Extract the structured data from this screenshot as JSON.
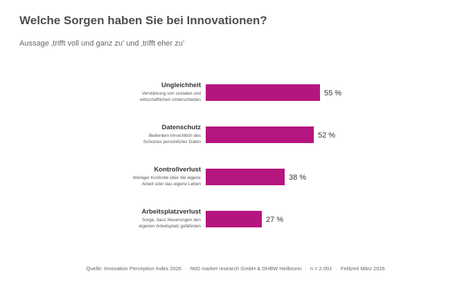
{
  "chart_data": {
    "type": "bar",
    "orientation": "horizontal",
    "title": "Welche Sorgen haben Sie bei Innovationen?",
    "subtitle": "Aussage ‚trifft voll und ganz zu’ und ‚trifft eher zu’",
    "categories": [
      "Ungleichheit",
      "Datenschutz",
      "Kontrollverlust",
      "Arbeitsplatzverlust"
    ],
    "descriptions": [
      [
        "Verstärkung von sozialen und",
        "wirtschaftlichen Unterschieden"
      ],
      [
        "Bedenken hinsichtlich des",
        "Schutzes persönlicher Daten"
      ],
      [
        "Weniger Kontrolle über die eigene",
        "Arbeit oder das eigene Leben"
      ],
      [
        "Sorge, dass Neuerungen den",
        "eigenen Arbeitsplatz gefährden"
      ]
    ],
    "values": [
      55,
      52,
      38,
      27
    ],
    "value_labels": [
      "55 %",
      "52 %",
      "38 %",
      "27 %"
    ],
    "bar_color": "#b5157e",
    "xlim": [
      0,
      100
    ],
    "grid": false,
    "legend": "none"
  },
  "footer": {
    "source": "Quelle: Innovation Perception Index 2026",
    "institution": "IWD market research GmbH & DHBW Heilbronn",
    "sample": "n = 2.001",
    "period": "Feldzeit März 2026",
    "separator": "·"
  }
}
